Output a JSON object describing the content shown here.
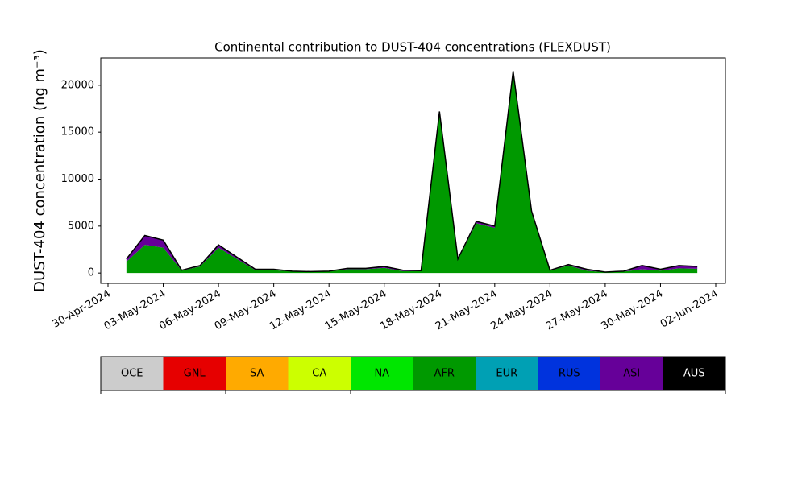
{
  "chart_data": {
    "type": "stacked_area",
    "title": "Continental contribution to DUST-404 concentrations (FLEXDUST)",
    "ylabel": "DUST-404 concentration (ng m⁻³)",
    "x": [
      "2024-05-01",
      "2024-05-02",
      "2024-05-03",
      "2024-05-04",
      "2024-05-05",
      "2024-05-06",
      "2024-05-07",
      "2024-05-08",
      "2024-05-09",
      "2024-05-10",
      "2024-05-11",
      "2024-05-12",
      "2024-05-13",
      "2024-05-14",
      "2024-05-15",
      "2024-05-16",
      "2024-05-17",
      "2024-05-18",
      "2024-05-19",
      "2024-05-20",
      "2024-05-21",
      "2024-05-22",
      "2024-05-23",
      "2024-05-24",
      "2024-05-25",
      "2024-05-26",
      "2024-05-27",
      "2024-05-28",
      "2024-05-29",
      "2024-05-30",
      "2024-05-31",
      "2024-06-01"
    ],
    "series": [
      {
        "name": "AFR",
        "color": "#009900",
        "values": [
          1200,
          3000,
          2700,
          250,
          700,
          2700,
          1500,
          300,
          300,
          150,
          120,
          150,
          400,
          400,
          550,
          200,
          200,
          17000,
          1400,
          5300,
          4800,
          21300,
          6400,
          250,
          800,
          250,
          80,
          150,
          400,
          250,
          500,
          450
        ]
      },
      {
        "name": "ASI",
        "color": "#660099",
        "values": [
          300,
          1000,
          800,
          50,
          100,
          300,
          200,
          100,
          100,
          50,
          30,
          50,
          100,
          100,
          150,
          100,
          50,
          200,
          100,
          200,
          200,
          200,
          200,
          50,
          100,
          150,
          20,
          50,
          400,
          150,
          300,
          250
        ]
      }
    ],
    "xlim": [
      "2024-04-30",
      "2024-06-02"
    ],
    "xticks": [
      {
        "value": "2024-04-30",
        "label": "30-Apr-2024"
      },
      {
        "value": "2024-05-03",
        "label": "03-May-2024"
      },
      {
        "value": "2024-05-06",
        "label": "06-May-2024"
      },
      {
        "value": "2024-05-09",
        "label": "09-May-2024"
      },
      {
        "value": "2024-05-12",
        "label": "12-May-2024"
      },
      {
        "value": "2024-05-15",
        "label": "15-May-2024"
      },
      {
        "value": "2024-05-18",
        "label": "18-May-2024"
      },
      {
        "value": "2024-05-21",
        "label": "21-May-2024"
      },
      {
        "value": "2024-05-24",
        "label": "24-May-2024"
      },
      {
        "value": "2024-05-27",
        "label": "27-May-2024"
      },
      {
        "value": "2024-05-30",
        "label": "30-May-2024"
      },
      {
        "value": "2024-06-02",
        "label": "02-Jun-2024"
      }
    ],
    "ylim": [
      -1100,
      22900
    ],
    "yticks": [
      0,
      5000,
      10000,
      15000,
      20000
    ],
    "legend": [
      {
        "name": "OCE",
        "color": "#cccccc"
      },
      {
        "name": "GNL",
        "color": "#e60000"
      },
      {
        "name": "SA",
        "color": "#ffaa00"
      },
      {
        "name": "CA",
        "color": "#ccff00"
      },
      {
        "name": "NA",
        "color": "#00e600"
      },
      {
        "name": "AFR",
        "color": "#009900"
      },
      {
        "name": "EUR",
        "color": "#00a0b4"
      },
      {
        "name": "RUS",
        "color": "#0033dd"
      },
      {
        "name": "ASI",
        "color": "#660099"
      },
      {
        "name": "AUS",
        "color": "#000000"
      }
    ]
  }
}
